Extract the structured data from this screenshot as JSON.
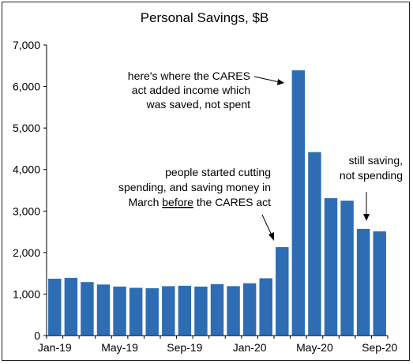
{
  "chart_data": {
    "type": "bar",
    "title": "Personal Savings, $B",
    "xlabel": "",
    "ylabel": "",
    "ylim": [
      0,
      7000
    ],
    "yticks": [
      "0",
      "1,000",
      "2,000",
      "3,000",
      "4,000",
      "5,000",
      "6,000",
      "7,000"
    ],
    "ytick_values": [
      0,
      1000,
      2000,
      3000,
      4000,
      5000,
      6000,
      7000
    ],
    "categories": [
      "Jan-19",
      "Feb-19",
      "Mar-19",
      "Apr-19",
      "May-19",
      "Jun-19",
      "Jul-19",
      "Aug-19",
      "Sep-19",
      "Oct-19",
      "Nov-19",
      "Dec-19",
      "Jan-20",
      "Feb-20",
      "Mar-20",
      "Apr-20",
      "May-20",
      "Jun-20",
      "Jul-20",
      "Aug-20",
      "Sep-20"
    ],
    "values": [
      1370,
      1390,
      1290,
      1230,
      1180,
      1150,
      1140,
      1190,
      1200,
      1180,
      1240,
      1190,
      1260,
      1380,
      2130,
      6390,
      4420,
      3310,
      3250,
      2570,
      2510
    ],
    "xtick_labels": [
      "Jan-19",
      "May-19",
      "Sep-19",
      "Jan-20",
      "May-20",
      "Sep-20"
    ],
    "bar_color": "#2E6DB4",
    "grid": false,
    "annotations": [
      {
        "lines": [
          "here's where the CARES",
          "act added income which",
          "was saved, not spent"
        ]
      },
      {
        "lines": [
          "people started cutting",
          "spending, and saving money in",
          "March before the CARES act"
        ],
        "underlined_word": "before"
      },
      {
        "lines": [
          "still saving,",
          "not spending"
        ]
      }
    ]
  }
}
